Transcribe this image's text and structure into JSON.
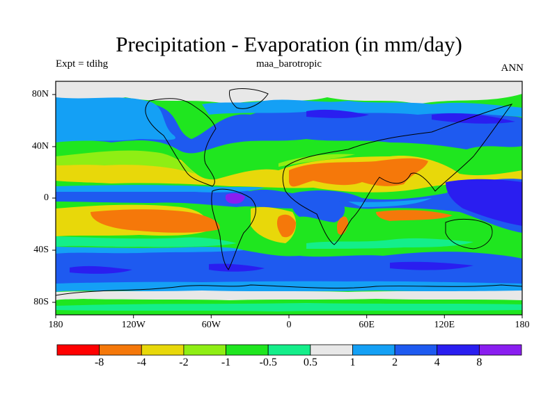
{
  "title": "Precipitation - Evaporation (in mm/day)",
  "subtitle_left": "Expt = tdihg",
  "subtitle_center": "maa_barotropic",
  "subtitle_right": "ANN",
  "lat_labels": [
    "80N",
    "40N",
    "0",
    "40S",
    "80S"
  ],
  "lon_labels": [
    "180",
    "120W",
    "60W",
    "0",
    "60E",
    "120E",
    "180"
  ],
  "colorbar": {
    "labels": [
      "-8",
      "-4",
      "-2",
      "-1",
      "-0.5",
      "0.5",
      "1",
      "2",
      "4",
      "8"
    ],
    "colors": [
      "#ff0000",
      "#f5780a",
      "#e8d80a",
      "#8fee14",
      "#1fe61f",
      "#14ee8a",
      "#e8e8e8",
      "#14a0f5",
      "#1e5af0",
      "#2a1ef0",
      "#8a1ef0"
    ]
  },
  "map_colors": {
    "bg": "#1fe61f",
    "orange": "#f5780a",
    "yellow": "#e8d80a",
    "lightgreen": "#8fee14",
    "teal": "#14ee8a",
    "white": "#e8e8e8",
    "lightblue": "#14a0f5",
    "blue": "#1e5af0",
    "darkblue": "#2a1ef0",
    "purple": "#8a1ef0"
  }
}
